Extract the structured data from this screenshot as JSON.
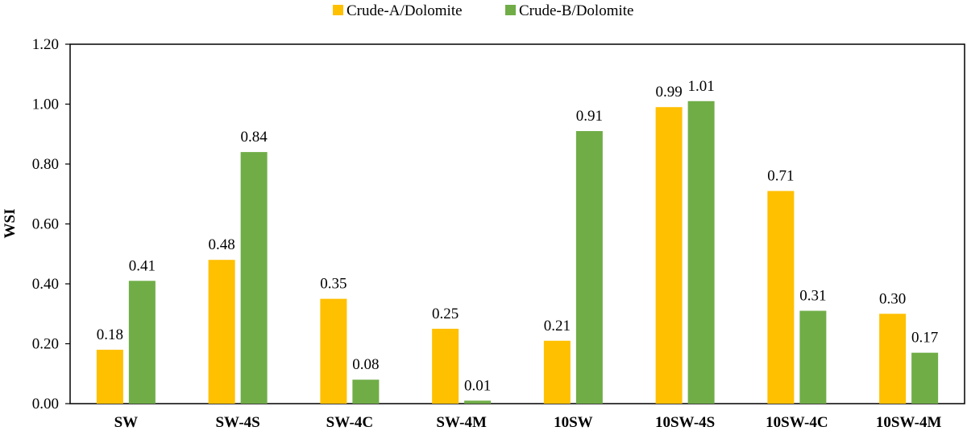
{
  "chart_data": {
    "type": "bar",
    "title": "",
    "xlabel": "",
    "ylabel": "WSI",
    "ylim": [
      0,
      1.2
    ],
    "yticks": [
      "0.00",
      "0.20",
      "0.40",
      "0.60",
      "0.80",
      "1.00",
      "1.20"
    ],
    "categories": [
      "SW",
      "SW-4S",
      "SW-4C",
      "SW-4M",
      "10SW",
      "10SW-4S",
      "10SW-4C",
      "10SW-4M"
    ],
    "series": [
      {
        "name": "Crude-A/Dolomite",
        "color": "#FFC000",
        "values": [
          0.18,
          0.48,
          0.35,
          0.25,
          0.21,
          0.99,
          0.71,
          0.3
        ],
        "labels": [
          "0.18",
          "0.48",
          "0.35",
          "0.25",
          "0.21",
          "0.99",
          "0.71",
          "0.30"
        ]
      },
      {
        "name": "Crude-B/Dolomite",
        "color": "#70AD47",
        "values": [
          0.41,
          0.84,
          0.08,
          0.01,
          0.91,
          1.01,
          0.31,
          0.17
        ],
        "labels": [
          "0.41",
          "0.84",
          "0.08",
          "0.01",
          "0.91",
          "1.01",
          "0.31",
          "0.17"
        ]
      }
    ],
    "legend": "top-center",
    "grid": false
  }
}
